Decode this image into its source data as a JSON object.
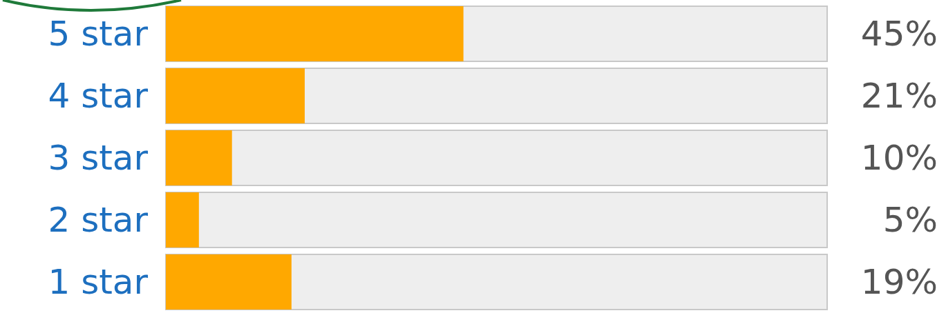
{
  "chart_data": {
    "type": "bar",
    "orientation": "horizontal",
    "categories": [
      "5 star",
      "4 star",
      "3 star",
      "2 star",
      "1 star"
    ],
    "values": [
      45,
      21,
      10,
      5,
      19
    ],
    "value_labels": [
      "45%",
      "21%",
      "10%",
      "5%",
      "19%"
    ],
    "color": "#ffa800",
    "tick_labels": "y",
    "grid": false
  }
}
